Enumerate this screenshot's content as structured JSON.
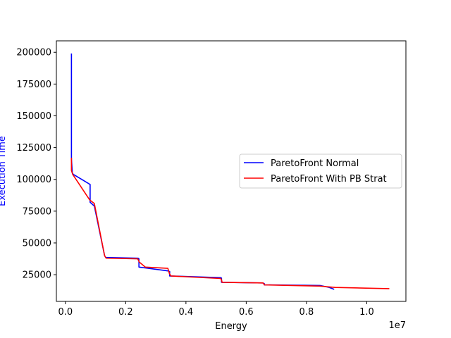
{
  "chart_data": {
    "type": "line",
    "title": "",
    "xlabel": "Energy",
    "ylabel": "Execution Time",
    "x_offset_label": "1e7",
    "xlim": [
      -300000,
      11300000
    ],
    "ylim": [
      4000,
      209000
    ],
    "x_ticks": [
      0,
      2000000,
      4000000,
      6000000,
      8000000,
      10000000
    ],
    "x_tick_labels": [
      "0.0",
      "0.2",
      "0.4",
      "0.6",
      "0.8",
      "1.0"
    ],
    "y_ticks": [
      25000,
      50000,
      75000,
      100000,
      125000,
      150000,
      175000,
      200000
    ],
    "y_tick_labels": [
      "25000",
      "50000",
      "75000",
      "100000",
      "125000",
      "150000",
      "175000",
      "200000"
    ],
    "grid": false,
    "legend_position": "center-right",
    "colors": {
      "axis": "#000000",
      "ylabel": "#0000ff"
    },
    "series": [
      {
        "name": "ParetoFront Normal",
        "color": "#0000ff",
        "x": [
          200000,
          200000,
          230000,
          260000,
          820000,
          820000,
          960000,
          1300000,
          1340000,
          2420000,
          2440000,
          2440000,
          3400000,
          3460000,
          3460000,
          5150000,
          5180000,
          5180000,
          6550000,
          6600000,
          6600000,
          8450000,
          8550000,
          8750000,
          8920000
        ],
        "y": [
          199000,
          116000,
          105000,
          104000,
          96000,
          82000,
          79000,
          40000,
          38500,
          38000,
          37500,
          31000,
          28000,
          27500,
          24000,
          22700,
          22300,
          19000,
          18500,
          18000,
          17000,
          16500,
          16000,
          15000,
          13500
        ]
      },
      {
        "name": "ParetoFront With PB Strat",
        "color": "#ff0000",
        "x": [
          200000,
          200000,
          240000,
          800000,
          850000,
          960000,
          1300000,
          1350000,
          2400000,
          2450000,
          2650000,
          3400000,
          3450000,
          3500000,
          5150000,
          5180000,
          5200000,
          6560000,
          6580000,
          6600000,
          8450000,
          8950000,
          10750000
        ],
        "y": [
          117000,
          107000,
          104000,
          84000,
          83000,
          81000,
          40000,
          38000,
          37500,
          35000,
          31000,
          30000,
          26000,
          24000,
          22000,
          21000,
          19000,
          18500,
          18000,
          17000,
          16000,
          15000,
          14000
        ]
      }
    ]
  }
}
